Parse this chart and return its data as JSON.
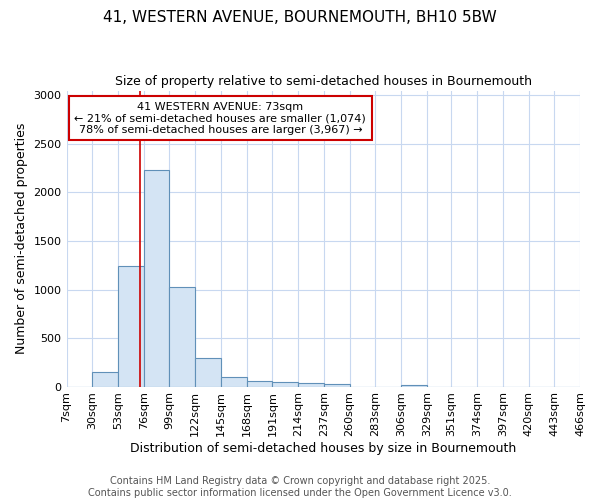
{
  "title": "41, WESTERN AVENUE, BOURNEMOUTH, BH10 5BW",
  "subtitle": "Size of property relative to semi-detached houses in Bournemouth",
  "xlabel": "Distribution of semi-detached houses by size in Bournemouth",
  "ylabel": "Number of semi-detached properties",
  "bin_edges": [
    7,
    30,
    53,
    76,
    99,
    122,
    145,
    168,
    191,
    214,
    237,
    260,
    283,
    306,
    329,
    351,
    374,
    397,
    420,
    443,
    466
  ],
  "bar_heights": [
    0,
    150,
    1240,
    2230,
    1030,
    290,
    100,
    55,
    50,
    35,
    25,
    0,
    0,
    20,
    0,
    0,
    0,
    0,
    0,
    0
  ],
  "bar_color": "#d4e4f4",
  "bar_edge_color": "#6090b8",
  "background_color": "#ffffff",
  "grid_color": "#c8d8f0",
  "property_size": 73,
  "red_line_color": "#cc0000",
  "annotation_line1": "41 WESTERN AVENUE: 73sqm",
  "annotation_line2": "← 21% of semi-detached houses are smaller (1,074)",
  "annotation_line3": "78% of semi-detached houses are larger (3,967) →",
  "annotation_box_color": "#ffffff",
  "annotation_border_color": "#cc0000",
  "ylim": [
    0,
    3050
  ],
  "yticks": [
    0,
    500,
    1000,
    1500,
    2000,
    2500,
    3000
  ],
  "footer_text": "Contains HM Land Registry data © Crown copyright and database right 2025.\nContains public sector information licensed under the Open Government Licence v3.0.",
  "title_fontsize": 11,
  "subtitle_fontsize": 9,
  "xlabel_fontsize": 9,
  "ylabel_fontsize": 9,
  "tick_fontsize": 8,
  "annotation_fontsize": 8,
  "footer_fontsize": 7
}
